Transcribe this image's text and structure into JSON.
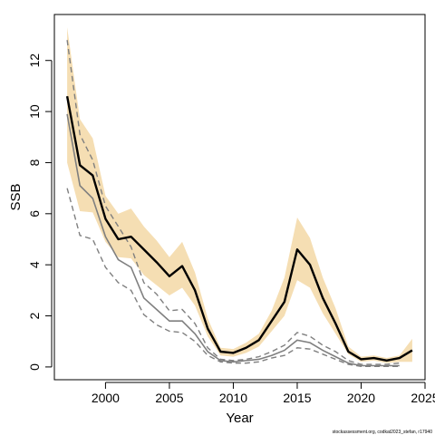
{
  "chart_data": {
    "type": "line",
    "xlabel": "Year",
    "ylabel": "SSB",
    "xlim": [
      1996,
      2025
    ],
    "ylim": [
      -0.5,
      13.8
    ],
    "xticks": [
      2000,
      2005,
      2010,
      2015,
      2020,
      2025
    ],
    "yticks": [
      0,
      2,
      4,
      6,
      8,
      10,
      12
    ],
    "grid": false,
    "credit": "stockassessment.org, codkat2023_stefan, r17940",
    "colors": {
      "band": "#f5deb3",
      "estimate": "#000000",
      "previous": "#7f7f7f"
    },
    "series": [
      {
        "role": "estimate-ci",
        "x": [
          1997,
          1998,
          1999,
          2000,
          2001,
          2002,
          2003,
          2004,
          2005,
          2006,
          2007,
          2008,
          2009,
          2010,
          2011,
          2012,
          2013,
          2014,
          2015,
          2016,
          2017,
          2018,
          2019,
          2020,
          2021,
          2022,
          2023,
          2024
        ],
        "lower": [
          8.0,
          6.1,
          6.05,
          4.9,
          4.3,
          4.25,
          3.6,
          3.2,
          2.8,
          3.1,
          2.4,
          1.2,
          0.45,
          0.4,
          0.55,
          0.8,
          1.4,
          2.0,
          3.4,
          3.1,
          2.1,
          1.3,
          0.5,
          0.2,
          0.25,
          0.15,
          0.2,
          0.2
        ],
        "upper": [
          13.3,
          9.7,
          8.95,
          6.7,
          6.0,
          6.2,
          5.5,
          4.95,
          4.3,
          4.9,
          3.7,
          1.9,
          0.75,
          0.7,
          0.95,
          1.3,
          2.2,
          3.5,
          5.85,
          5.05,
          3.5,
          2.3,
          0.8,
          0.4,
          0.45,
          0.35,
          0.45,
          1.1
        ]
      },
      {
        "role": "estimate",
        "x": [
          1997,
          1998,
          1999,
          2000,
          2001,
          2002,
          2003,
          2004,
          2005,
          2006,
          2007,
          2008,
          2009,
          2010,
          2011,
          2012,
          2013,
          2014,
          2015,
          2016,
          2017,
          2018,
          2019,
          2020,
          2021,
          2022,
          2023,
          2024
        ],
        "y": [
          10.6,
          7.9,
          7.5,
          5.8,
          5.0,
          5.1,
          4.6,
          4.1,
          3.55,
          3.95,
          3.0,
          1.5,
          0.6,
          0.55,
          0.75,
          1.05,
          1.8,
          2.55,
          4.6,
          4.0,
          2.7,
          1.7,
          0.6,
          0.3,
          0.35,
          0.25,
          0.35,
          0.65
        ]
      },
      {
        "role": "previous-estimate",
        "x": [
          1997,
          1998,
          1999,
          2000,
          2001,
          2002,
          2003,
          2004,
          2005,
          2006,
          2007,
          2008,
          2009,
          2010,
          2011,
          2012,
          2013,
          2014,
          2015,
          2016,
          2017,
          2018,
          2019,
          2020,
          2021,
          2022,
          2023
        ],
        "y": [
          9.9,
          7.1,
          6.6,
          5.1,
          4.2,
          3.9,
          2.7,
          2.25,
          1.8,
          1.8,
          1.3,
          0.6,
          0.25,
          0.2,
          0.25,
          0.3,
          0.45,
          0.65,
          1.05,
          0.95,
          0.65,
          0.4,
          0.15,
          0.05,
          0.05,
          0.05,
          0.05
        ]
      },
      {
        "role": "previous-upper",
        "x": [
          1997,
          1998,
          1999,
          2000,
          2001,
          2002,
          2003,
          2004,
          2005,
          2006,
          2007,
          2008,
          2009,
          2010,
          2011,
          2012,
          2013,
          2014,
          2015,
          2016,
          2017,
          2018,
          2019,
          2020,
          2021,
          2022,
          2023
        ],
        "y": [
          12.8,
          9.1,
          8.1,
          6.3,
          5.5,
          4.7,
          3.3,
          2.85,
          2.2,
          2.25,
          1.7,
          0.75,
          0.3,
          0.25,
          0.3,
          0.4,
          0.6,
          0.85,
          1.35,
          1.2,
          0.85,
          0.6,
          0.25,
          0.1,
          0.1,
          0.1,
          0.15
        ]
      },
      {
        "role": "previous-lower",
        "x": [
          1997,
          1998,
          1999,
          2000,
          2001,
          2002,
          2003,
          2004,
          2005,
          2006,
          2007,
          2008,
          2009,
          2010,
          2011,
          2012,
          2013,
          2014,
          2015,
          2016,
          2017,
          2018,
          2019,
          2020,
          2021,
          2022,
          2023
        ],
        "y": [
          7.0,
          5.15,
          5.0,
          3.9,
          3.3,
          3.0,
          2.05,
          1.65,
          1.4,
          1.35,
          1.0,
          0.45,
          0.2,
          0.15,
          0.15,
          0.2,
          0.35,
          0.45,
          0.75,
          0.7,
          0.5,
          0.3,
          0.1,
          0.02,
          0.02,
          0.02,
          0.02
        ]
      }
    ]
  }
}
